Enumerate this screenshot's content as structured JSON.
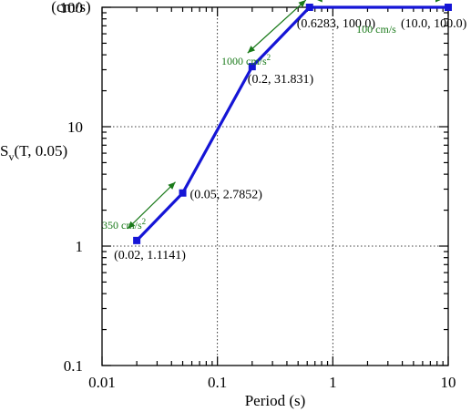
{
  "chart_data": {
    "type": "line",
    "title": "",
    "xlabel": "Period (s)",
    "ylabel_main": "S",
    "ylabel_sub": "v",
    "ylabel_rest": "(T, 0.05)",
    "yunit": "(cm/s)",
    "xscale": "log",
    "yscale": "log",
    "xlim": [
      0.01,
      10
    ],
    "ylim": [
      0.1,
      100
    ],
    "grid": true,
    "xticks": [
      0.01,
      0.1,
      1,
      10
    ],
    "xtick_labels": [
      "0.01",
      "0.1",
      "1",
      "10"
    ],
    "yticks": [
      0.1,
      1,
      10,
      100
    ],
    "ytick_labels": [
      "0.1",
      "1",
      "10",
      "100"
    ],
    "series": [
      {
        "x": [
          0.02,
          0.05,
          0.2,
          0.6283,
          10.0
        ],
        "y": [
          1.1141,
          2.7852,
          31.831,
          100.0,
          100.0
        ],
        "point_labels": [
          "(0.02, 1.1141)",
          "(0.05, 2.7852)",
          "(0.2, 31.831)",
          "(0.6283, 100.0)",
          "(10.0, 100.0)"
        ]
      }
    ],
    "annotations": [
      {
        "text": "350 cm/s",
        "superscript": "2"
      },
      {
        "text": "1000 cm/s",
        "superscript": "2"
      },
      {
        "text": "100 cm/s",
        "superscript": ""
      }
    ],
    "colors": {
      "series": "#1515d6",
      "annotation": "#1a7a1a"
    }
  }
}
